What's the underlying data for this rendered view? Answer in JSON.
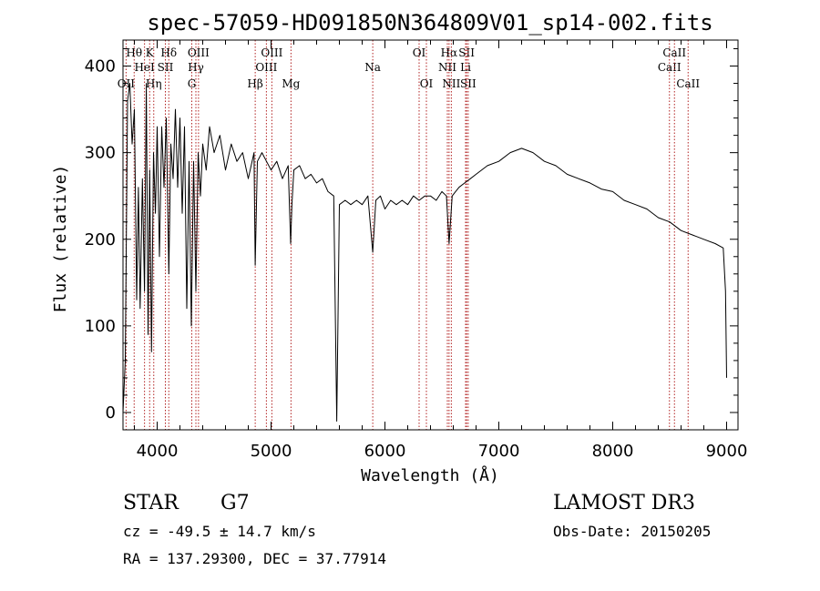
{
  "chart_data": {
    "type": "line",
    "title": "spec-57059-HD091850N364809V01_sp14-002.fits",
    "xlabel": "Wavelength (Å)",
    "ylabel": "Flux (relative)",
    "xlim": [
      3700,
      9100
    ],
    "ylim": [
      -20,
      430
    ],
    "xticks": [
      4000,
      5000,
      6000,
      7000,
      8000,
      9000
    ],
    "yticks": [
      0,
      100,
      200,
      300,
      400
    ],
    "line_color": "#000000",
    "marker_color": "#b22222",
    "spectrum": {
      "name": "flux",
      "x": [
        3700,
        3720,
        3740,
        3760,
        3780,
        3800,
        3820,
        3835,
        3850,
        3870,
        3889,
        3905,
        3920,
        3934,
        3950,
        3968,
        3985,
        4000,
        4020,
        4040,
        4060,
        4080,
        4102,
        4120,
        4140,
        4160,
        4180,
        4200,
        4220,
        4240,
        4260,
        4280,
        4300,
        4320,
        4340,
        4360,
        4380,
        4400,
        4430,
        4460,
        4500,
        4550,
        4600,
        4650,
        4700,
        4750,
        4800,
        4850,
        4861,
        4880,
        4920,
        4960,
        5000,
        5050,
        5100,
        5150,
        5172,
        5183,
        5200,
        5250,
        5300,
        5350,
        5400,
        5450,
        5500,
        5550,
        5577,
        5600,
        5650,
        5700,
        5750,
        5800,
        5850,
        5893,
        5920,
        5960,
        6000,
        6050,
        6100,
        6150,
        6200,
        6250,
        6300,
        6350,
        6400,
        6450,
        6500,
        6540,
        6563,
        6590,
        6620,
        6650,
        6700,
        6750,
        6800,
        6900,
        7000,
        7100,
        7200,
        7300,
        7400,
        7500,
        7600,
        7700,
        7800,
        7900,
        8000,
        8100,
        8200,
        8300,
        8400,
        8500,
        8600,
        8700,
        8800,
        8900,
        8970,
        8990,
        9000
      ],
      "y": [
        0,
        60,
        360,
        380,
        310,
        350,
        130,
        260,
        120,
        270,
        140,
        380,
        90,
        280,
        70,
        300,
        230,
        330,
        180,
        330,
        260,
        340,
        160,
        310,
        270,
        350,
        260,
        340,
        230,
        330,
        120,
        290,
        100,
        290,
        140,
        300,
        250,
        310,
        280,
        330,
        300,
        320,
        280,
        310,
        290,
        300,
        270,
        300,
        170,
        290,
        300,
        290,
        280,
        290,
        270,
        285,
        195,
        240,
        280,
        285,
        270,
        275,
        265,
        270,
        255,
        250,
        -10,
        240,
        245,
        240,
        245,
        240,
        250,
        185,
        245,
        250,
        235,
        245,
        240,
        245,
        240,
        250,
        245,
        250,
        250,
        245,
        255,
        250,
        195,
        250,
        255,
        260,
        265,
        270,
        275,
        285,
        290,
        300,
        305,
        300,
        290,
        285,
        275,
        270,
        265,
        258,
        255,
        245,
        240,
        235,
        225,
        220,
        210,
        205,
        200,
        195,
        190,
        140,
        40
      ]
    },
    "line_markers": [
      {
        "name": "OII",
        "x": 3727,
        "row": 3
      },
      {
        "name": "Hθ",
        "x": 3798,
        "row": 1
      },
      {
        "name": "HeI",
        "x": 3889,
        "row": 2
      },
      {
        "name": "K",
        "x": 3934,
        "row": 1
      },
      {
        "name": "Hη",
        "x": 3970,
        "row": 3
      },
      {
        "name": "SII",
        "x": 4072,
        "row": 2
      },
      {
        "name": "Hδ",
        "x": 4102,
        "row": 1
      },
      {
        "name": "G",
        "x": 4304,
        "row": 3
      },
      {
        "name": "Hγ",
        "x": 4340,
        "row": 2
      },
      {
        "name": "OIII",
        "x": 4363,
        "row": 1
      },
      {
        "name": "Hβ",
        "x": 4861,
        "row": 3
      },
      {
        "name": "OIII",
        "x": 4959,
        "row": 2
      },
      {
        "name": "OIII",
        "x": 5007,
        "row": 1
      },
      {
        "name": "Mg",
        "x": 5175,
        "row": 3
      },
      {
        "name": "Na",
        "x": 5893,
        "row": 2
      },
      {
        "name": "OI",
        "x": 6300,
        "row": 1
      },
      {
        "name": "OI",
        "x": 6364,
        "row": 3
      },
      {
        "name": "NII",
        "x": 6548,
        "row": 2
      },
      {
        "name": "Hα",
        "x": 6563,
        "row": 1
      },
      {
        "name": "NII",
        "x": 6583,
        "row": 3
      },
      {
        "name": "Li",
        "x": 6708,
        "row": 2
      },
      {
        "name": "SII",
        "x": 6717,
        "row": 1
      },
      {
        "name": "SII",
        "x": 6731,
        "row": 3
      },
      {
        "name": "CaII",
        "x": 8498,
        "row": 2
      },
      {
        "name": "CaII",
        "x": 8542,
        "row": 1
      },
      {
        "name": "CaII",
        "x": 8662,
        "row": 3
      }
    ]
  },
  "info": {
    "object_type": "STAR",
    "subclass": "G7",
    "survey": "LAMOST DR3",
    "redshift": "cz = -49.5 ± 14.7 km/s",
    "obs_date": "Obs-Date: 20150205",
    "coords": "RA = 137.29300, DEC =  37.77914"
  }
}
